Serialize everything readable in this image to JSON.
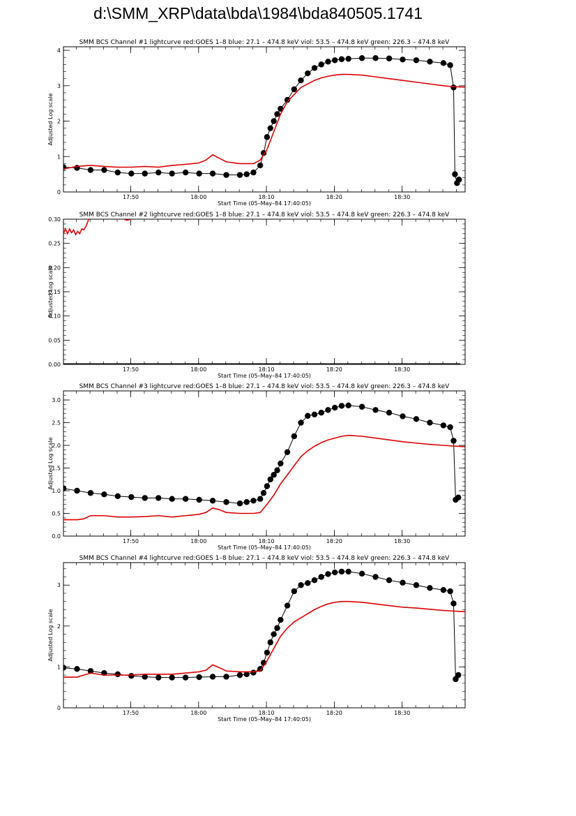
{
  "page": {
    "title": "d:\\SMM_XRP\\data\\bda\\1984\\bda840505.1741"
  },
  "chart_data": [
    {
      "type": "scatter",
      "title": "SMM BCS Channel #1 lightcurve  red:GOES 1–8  blue: 27.1 – 474.8 keV  viol: 53.5 – 474.8 keV  green: 226.3 – 474.8 keV",
      "xlabel": "Start Time (05–May–84 17:40:05)",
      "ylabel": "Adjusted Log scale",
      "xlim": [
        0,
        59.2
      ],
      "ylim": [
        0,
        4.1
      ],
      "xticks": [
        {
          "v": 9.917,
          "label": "17:50"
        },
        {
          "v": 19.917,
          "label": "18:00"
        },
        {
          "v": 29.917,
          "label": "18:10"
        },
        {
          "v": 39.917,
          "label": "18:20"
        },
        {
          "v": 49.917,
          "label": "18:30"
        }
      ],
      "yticks": [
        {
          "v": 0,
          "label": "0"
        },
        {
          "v": 1,
          "label": "1"
        },
        {
          "v": 2,
          "label": "2"
        },
        {
          "v": 3,
          "label": "3"
        },
        {
          "v": 4,
          "label": "4"
        }
      ],
      "grid": false,
      "series": [
        {
          "color": "#000000",
          "style": "dots",
          "x": [
            0,
            2,
            4,
            6,
            8,
            10,
            12,
            14,
            16,
            18,
            20,
            22,
            24,
            26,
            27,
            28,
            29,
            29.5,
            30,
            30.5,
            31,
            31.5,
            32,
            33,
            34,
            35,
            36,
            37,
            38,
            39,
            40,
            41,
            42,
            44,
            46,
            48,
            50,
            52,
            54,
            56,
            57,
            57.5,
            57.7,
            58,
            58.3
          ],
          "y": [
            0.7,
            0.68,
            0.62,
            0.62,
            0.55,
            0.52,
            0.52,
            0.55,
            0.52,
            0.55,
            0.52,
            0.52,
            0.48,
            0.48,
            0.5,
            0.55,
            0.75,
            1.1,
            1.55,
            1.8,
            2.0,
            2.2,
            2.35,
            2.6,
            2.9,
            3.15,
            3.35,
            3.5,
            3.6,
            3.68,
            3.72,
            3.75,
            3.76,
            3.78,
            3.78,
            3.77,
            3.74,
            3.72,
            3.68,
            3.64,
            3.58,
            2.95,
            0.5,
            0.25,
            0.35
          ]
        },
        {
          "color": "#dd0000",
          "style": "line",
          "x": [
            0,
            2,
            4,
            6,
            8,
            10,
            12,
            14,
            16,
            18,
            20,
            21,
            22,
            23,
            24,
            26,
            28,
            29,
            30,
            31,
            32,
            33,
            34,
            35,
            36,
            37,
            38,
            39,
            40,
            41,
            42,
            44,
            46,
            48,
            50,
            52,
            54,
            56,
            57,
            58,
            59.2
          ],
          "y": [
            0.65,
            0.72,
            0.75,
            0.72,
            0.7,
            0.7,
            0.72,
            0.7,
            0.75,
            0.78,
            0.82,
            0.9,
            1.05,
            0.95,
            0.85,
            0.8,
            0.8,
            0.9,
            1.2,
            1.7,
            2.2,
            2.55,
            2.75,
            2.95,
            3.05,
            3.15,
            3.22,
            3.27,
            3.3,
            3.32,
            3.32,
            3.3,
            3.25,
            3.2,
            3.15,
            3.1,
            3.05,
            3.0,
            2.98,
            2.97,
            2.96
          ]
        }
      ]
    },
    {
      "type": "scatter",
      "title": "SMM BCS Channel #2 lightcurve  red:GOES 1–8  blue: 27.1 – 474.8 keV  viol: 53.5 – 474.8 keV  green: 226.3 – 474.8 keV",
      "xlabel": "Start Time (05–May–84 17:40:05)",
      "ylabel": "Adjusted Log scale",
      "xlim": [
        0,
        59.2
      ],
      "ylim": [
        0,
        0.3
      ],
      "xticks": [
        {
          "v": 9.917,
          "label": "17:50"
        },
        {
          "v": 19.917,
          "label": "18:00"
        },
        {
          "v": 29.917,
          "label": "18:10"
        },
        {
          "v": 39.917,
          "label": "18:20"
        },
        {
          "v": 49.917,
          "label": "18:30"
        }
      ],
      "yticks": [
        {
          "v": 0,
          "label": "0.00"
        },
        {
          "v": 0.05,
          "label": "0.05"
        },
        {
          "v": 0.1,
          "label": "0.10"
        },
        {
          "v": 0.15,
          "label": "0.15"
        },
        {
          "v": 0.2,
          "label": "0.20"
        },
        {
          "v": 0.25,
          "label": "0.25"
        },
        {
          "v": 0.3,
          "label": "0.30"
        }
      ],
      "grid": false,
      "series": [
        {
          "color": "#000000",
          "style": "line-thick",
          "x": [
            0,
            58.5
          ],
          "y": [
            0,
            0
          ]
        },
        {
          "color": "#dd0000",
          "style": "line",
          "x": [
            0,
            0.3,
            0.6,
            0.9,
            1.2,
            1.5,
            1.8,
            2.1,
            2.4,
            2.7,
            3.0,
            3.3,
            3.6,
            3.9
          ],
          "y": [
            0.27,
            0.28,
            0.27,
            0.28,
            0.272,
            0.278,
            0.268,
            0.275,
            0.27,
            0.28,
            0.278,
            0.285,
            0.295,
            0.31
          ]
        },
        {
          "color": "#dd0000",
          "style": "line",
          "x": [
            9.0,
            9.5,
            10.0
          ],
          "y": [
            0.299,
            0.298,
            0.301
          ]
        }
      ]
    },
    {
      "type": "scatter",
      "title": "SMM BCS Channel #3 lightcurve  red:GOES 1–8  blue: 27.1 – 474.8 keV  viol: 53.5 – 474.8 keV  green: 226.3 – 474.8 keV",
      "xlabel": "Start Time (05–May–84 17:40:05)",
      "ylabel": "Adjusted Log scale",
      "xlim": [
        0,
        59.2
      ],
      "ylim": [
        0,
        3.2
      ],
      "xticks": [
        {
          "v": 9.917,
          "label": "17:50"
        },
        {
          "v": 19.917,
          "label": "18:00"
        },
        {
          "v": 29.917,
          "label": "18:10"
        },
        {
          "v": 39.917,
          "label": "18:20"
        },
        {
          "v": 49.917,
          "label": "18:30"
        }
      ],
      "yticks": [
        {
          "v": 0,
          "label": "0.0"
        },
        {
          "v": 0.5,
          "label": "0.5"
        },
        {
          "v": 1.0,
          "label": "1.0"
        },
        {
          "v": 1.5,
          "label": "1.5"
        },
        {
          "v": 2.0,
          "label": "2.0"
        },
        {
          "v": 2.5,
          "label": "2.5"
        },
        {
          "v": 3.0,
          "label": "3.0"
        }
      ],
      "grid": false,
      "series": [
        {
          "color": "#000000",
          "style": "dots",
          "x": [
            0,
            2,
            4,
            6,
            8,
            10,
            12,
            14,
            16,
            18,
            20,
            22,
            24,
            26,
            27,
            28,
            29,
            29.5,
            30,
            30.5,
            31,
            31.5,
            32,
            33,
            34,
            35,
            36,
            37,
            38,
            39,
            40,
            41,
            42,
            44,
            46,
            48,
            50,
            52,
            54,
            56,
            57,
            57.5,
            57.8,
            58.2
          ],
          "y": [
            1.05,
            1.0,
            0.95,
            0.92,
            0.88,
            0.86,
            0.84,
            0.84,
            0.82,
            0.82,
            0.8,
            0.78,
            0.75,
            0.72,
            0.75,
            0.78,
            0.82,
            0.95,
            1.1,
            1.25,
            1.35,
            1.45,
            1.6,
            1.85,
            2.2,
            2.5,
            2.65,
            2.68,
            2.72,
            2.78,
            2.83,
            2.87,
            2.88,
            2.85,
            2.78,
            2.72,
            2.64,
            2.58,
            2.5,
            2.44,
            2.4,
            2.1,
            0.8,
            0.85
          ]
        },
        {
          "color": "#dd0000",
          "style": "line",
          "x": [
            0,
            2,
            3,
            4,
            6,
            8,
            10,
            12,
            14,
            16,
            18,
            20,
            21,
            22,
            23,
            24,
            26,
            28,
            29,
            30,
            31,
            32,
            33,
            34,
            35,
            36,
            37,
            38,
            39,
            40,
            41,
            42,
            44,
            46,
            48,
            50,
            52,
            54,
            56,
            57,
            58,
            59.2
          ],
          "y": [
            0.36,
            0.36,
            0.38,
            0.45,
            0.45,
            0.42,
            0.42,
            0.43,
            0.45,
            0.42,
            0.45,
            0.48,
            0.52,
            0.62,
            0.58,
            0.52,
            0.5,
            0.5,
            0.52,
            0.7,
            0.9,
            1.15,
            1.35,
            1.55,
            1.75,
            1.88,
            1.98,
            2.06,
            2.12,
            2.16,
            2.2,
            2.22,
            2.2,
            2.16,
            2.12,
            2.08,
            2.05,
            2.02,
            2.0,
            1.99,
            1.98,
            1.97
          ]
        }
      ]
    },
    {
      "type": "scatter",
      "title": "SMM BCS Channel #4 lightcurve  red:GOES 1–8  blue: 27.1 – 474.8 keV  viol: 53.5 – 474.8 keV  green: 226.3 – 474.8 keV",
      "xlabel": "Start Time (05–May–84 17:40:05)",
      "ylabel": "Adjusted Log scale",
      "xlim": [
        0,
        59.2
      ],
      "ylim": [
        0,
        3.55
      ],
      "xticks": [
        {
          "v": 9.917,
          "label": "17:50"
        },
        {
          "v": 19.917,
          "label": "18:00"
        },
        {
          "v": 29.917,
          "label": "18:10"
        },
        {
          "v": 39.917,
          "label": "18:20"
        },
        {
          "v": 49.917,
          "label": "18:30"
        }
      ],
      "yticks": [
        {
          "v": 0,
          "label": "0"
        },
        {
          "v": 1,
          "label": "1"
        },
        {
          "v": 2,
          "label": "2"
        },
        {
          "v": 3,
          "label": "3"
        }
      ],
      "grid": false,
      "series": [
        {
          "color": "#000000",
          "style": "dots",
          "x": [
            0,
            2,
            4,
            6,
            8,
            10,
            12,
            14,
            16,
            18,
            20,
            22,
            24,
            26,
            27,
            28,
            29,
            29.5,
            30,
            30.5,
            31,
            31.5,
            32,
            33,
            34,
            35,
            36,
            37,
            38,
            39,
            40,
            41,
            42,
            44,
            46,
            48,
            50,
            52,
            54,
            56,
            57,
            57.5,
            57.8,
            58.2
          ],
          "y": [
            0.98,
            0.95,
            0.9,
            0.85,
            0.82,
            0.78,
            0.76,
            0.74,
            0.74,
            0.74,
            0.75,
            0.76,
            0.76,
            0.8,
            0.82,
            0.86,
            0.95,
            1.1,
            1.35,
            1.6,
            1.8,
            1.95,
            2.15,
            2.5,
            2.85,
            3.0,
            3.05,
            3.12,
            3.2,
            3.27,
            3.31,
            3.33,
            3.33,
            3.28,
            3.2,
            3.12,
            3.06,
            3.0,
            2.93,
            2.88,
            2.85,
            2.55,
            0.7,
            0.8
          ]
        },
        {
          "color": "#dd0000",
          "style": "line",
          "x": [
            0,
            2,
            3,
            4,
            6,
            8,
            10,
            12,
            14,
            16,
            18,
            20,
            21,
            22,
            23,
            24,
            26,
            28,
            29,
            30,
            31,
            32,
            33,
            34,
            35,
            36,
            37,
            38,
            39,
            40,
            41,
            42,
            44,
            46,
            48,
            50,
            52,
            54,
            56,
            57,
            58,
            59.2
          ],
          "y": [
            0.75,
            0.75,
            0.8,
            0.85,
            0.8,
            0.8,
            0.8,
            0.82,
            0.82,
            0.82,
            0.85,
            0.88,
            0.92,
            1.05,
            0.98,
            0.9,
            0.88,
            0.88,
            0.9,
            1.15,
            1.45,
            1.75,
            1.95,
            2.1,
            2.2,
            2.3,
            2.4,
            2.48,
            2.54,
            2.58,
            2.6,
            2.6,
            2.58,
            2.54,
            2.5,
            2.46,
            2.44,
            2.41,
            2.38,
            2.37,
            2.36,
            2.35
          ]
        }
      ]
    }
  ]
}
